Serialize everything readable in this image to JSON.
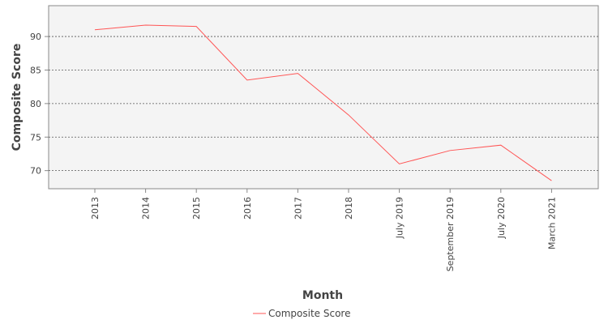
{
  "chart_data": {
    "type": "line",
    "title": "",
    "xlabel": "Month",
    "ylabel": "Composite Score",
    "categories": [
      "2013",
      "2014",
      "2015",
      "2016",
      "2017",
      "2018",
      "July 2019",
      "September 2019",
      "July 2020",
      "March 2021"
    ],
    "series": [
      {
        "name": "Composite Score",
        "color": "#ff5555",
        "values": [
          91.0,
          91.7,
          91.5,
          83.5,
          84.5,
          78.3,
          71.0,
          73.0,
          73.8,
          68.5
        ]
      }
    ],
    "yticks": [
      70,
      75,
      80,
      85,
      90
    ],
    "ylim": [
      67.3,
      94.6
    ],
    "grid": "horizontal-dashed",
    "legend_position": "bottom-center",
    "colors": {
      "plot_background": "#f4f4f4",
      "gridline": "#555555",
      "axis_text": "#444444"
    }
  }
}
